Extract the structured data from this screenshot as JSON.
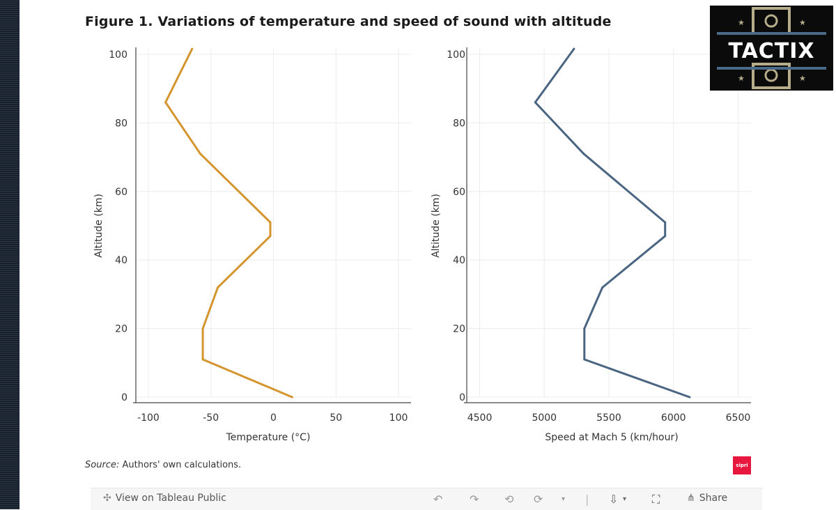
{
  "title": "Figure 1. Variations of temperature and speed of sound with altitude",
  "source_label": "Source:",
  "source_text": "Authors' own calculations.",
  "brand_badge": "sipri",
  "logo": {
    "text": "TACTIX"
  },
  "colors": {
    "temperature": "#D4952E",
    "speed": "#4A6582",
    "grid": "#ececec",
    "axis": "#444444"
  },
  "toolbar": {
    "view_label": "View on Tableau Public",
    "share_label": "Share",
    "icons": [
      "undo-icon",
      "redo-icon",
      "revert-icon",
      "refresh-icon",
      "download-icon",
      "fullscreen-icon",
      "share-icon"
    ]
  },
  "chart_data": [
    {
      "type": "line",
      "name": "temperature",
      "xlabel": "Temperature (°C)",
      "ylabel": "Altitude (km)",
      "xlim": [
        -110,
        110
      ],
      "ylim": [
        0,
        100
      ],
      "xticks": [
        -100,
        -50,
        0,
        50,
        100
      ],
      "yticks": [
        0,
        20,
        40,
        60,
        80,
        100
      ],
      "x": [
        15,
        -56.5,
        -56.5,
        -44.5,
        -2.5,
        -2.5,
        -58.5,
        -86.3,
        -65
      ],
      "y": [
        0,
        11,
        20,
        32,
        47,
        51,
        71,
        86,
        102
      ]
    },
    {
      "type": "line",
      "name": "speed",
      "xlabel": "Speed at Mach 5 (km/hour)",
      "ylabel": "Altitude (km)",
      "xlim": [
        4400,
        6600
      ],
      "ylim": [
        0,
        100
      ],
      "xticks": [
        4500,
        5000,
        5500,
        6000,
        6500
      ],
      "yticks": [
        0,
        20,
        40,
        60,
        80,
        100
      ],
      "x": [
        6125,
        5310,
        5310,
        5450,
        5935,
        5935,
        5305,
        4930,
        5230
      ],
      "y": [
        0,
        11,
        20,
        32,
        47,
        51,
        71,
        86,
        102
      ]
    }
  ]
}
